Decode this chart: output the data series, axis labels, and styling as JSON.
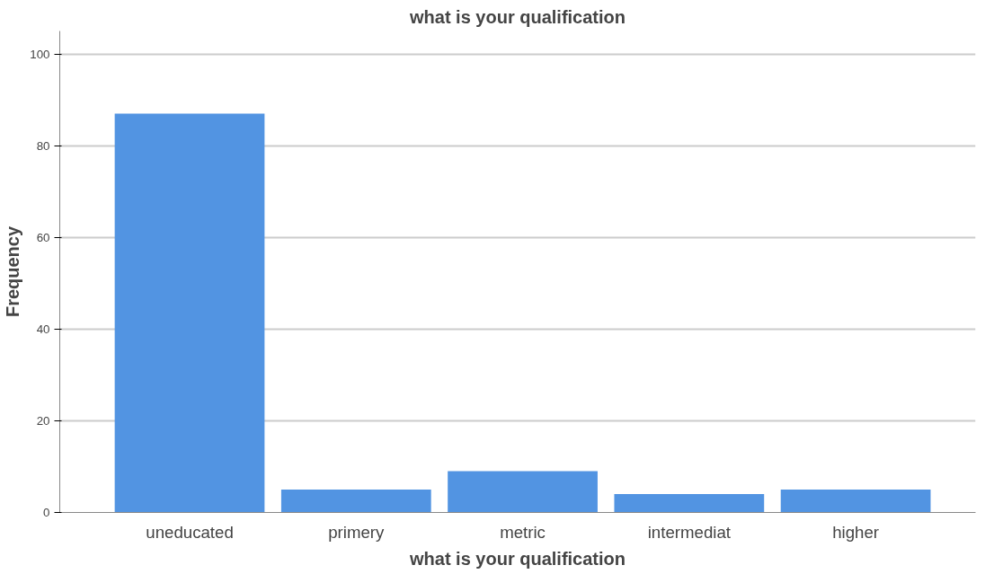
{
  "chart_data": {
    "type": "bar",
    "title": "what is your qualification",
    "xlabel": "what is your qualification",
    "ylabel": "Frequency",
    "categories": [
      "uneducated",
      "primery",
      "metric",
      "intermediat",
      "higher"
    ],
    "values": [
      87,
      5,
      9,
      4,
      5
    ],
    "color": "#5294e2",
    "ylim": [
      0,
      105
    ],
    "yticks": [
      0,
      20,
      40,
      60,
      80,
      100
    ],
    "grid": "y"
  }
}
